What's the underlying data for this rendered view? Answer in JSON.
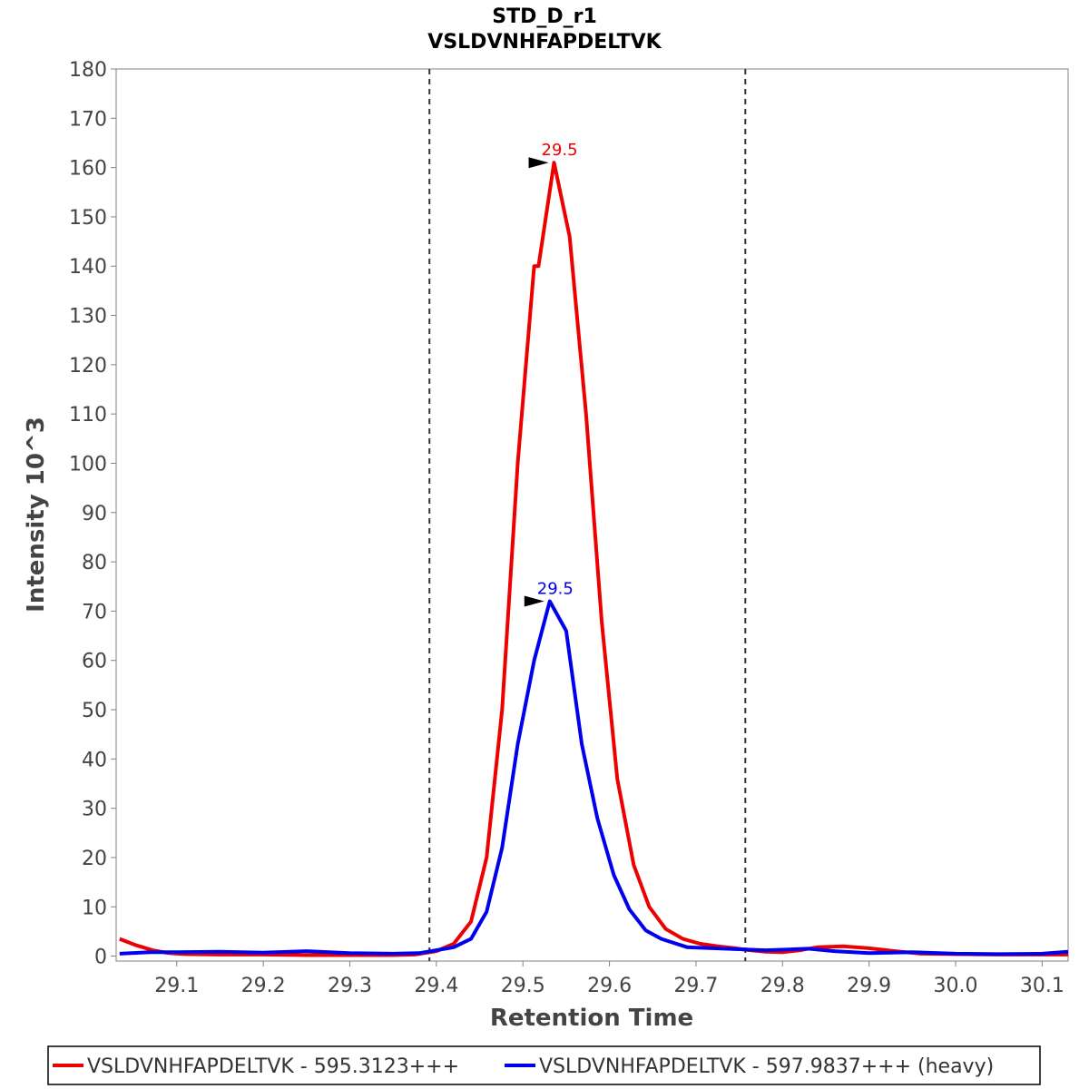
{
  "chart_data": {
    "type": "line",
    "title": "STD_D_r1",
    "subtitle": "VSLDVNHFAPDELTVK",
    "xlabel": "Retention Time",
    "ylabel": "Intensity 10^3",
    "xlim": [
      29.03,
      30.13
    ],
    "ylim": [
      -1,
      180
    ],
    "xticks": [
      "29.1",
      "29.2",
      "29.3",
      "29.4",
      "29.5",
      "29.6",
      "29.7",
      "29.8",
      "29.9",
      "30.0",
      "30.1"
    ],
    "yticks": [
      "0",
      "10",
      "20",
      "30",
      "40",
      "50",
      "60",
      "70",
      "80",
      "90",
      "100",
      "110",
      "120",
      "130",
      "140",
      "150",
      "160",
      "170",
      "180"
    ],
    "grid": false,
    "legend_position": "bottom",
    "integration_boundaries": [
      29.392,
      29.757
    ],
    "series": [
      {
        "name": "VSLDVNHFAPDELTVK - 595.3123+++",
        "color": "#ee0000",
        "x": [
          29.034,
          29.053,
          29.072,
          29.091,
          29.11,
          29.15,
          29.2,
          29.25,
          29.3,
          29.35,
          29.375,
          29.4,
          29.42,
          29.44,
          29.458,
          29.476,
          29.494,
          29.513,
          29.518,
          29.536,
          29.554,
          29.573,
          29.591,
          29.609,
          29.628,
          29.646,
          29.665,
          29.685,
          29.705,
          29.725,
          29.745,
          29.757,
          29.78,
          29.8,
          29.82,
          29.84,
          29.87,
          29.9,
          29.93,
          29.96,
          30.0,
          30.05,
          30.1,
          30.13
        ],
        "y": [
          3.5,
          2.2,
          1.2,
          0.6,
          0.4,
          0.3,
          0.3,
          0.2,
          0.2,
          0.2,
          0.3,
          1.0,
          2.5,
          7.0,
          20.0,
          50.0,
          100.0,
          140.0,
          140.0,
          161.0,
          146.0,
          110.0,
          68.0,
          36.0,
          18.5,
          10.0,
          5.5,
          3.5,
          2.5,
          2.0,
          1.6,
          1.3,
          0.9,
          0.8,
          1.2,
          1.8,
          2.0,
          1.6,
          1.0,
          0.5,
          0.4,
          0.3,
          0.3,
          0.3
        ]
      },
      {
        "name": "VSLDVNHFAPDELTVK - 597.9837+++ (heavy)",
        "color": "#0000ee",
        "x": [
          29.034,
          29.07,
          29.1,
          29.15,
          29.2,
          29.25,
          29.3,
          29.35,
          29.38,
          29.4,
          29.42,
          29.44,
          29.458,
          29.476,
          29.494,
          29.513,
          29.531,
          29.55,
          29.568,
          29.586,
          29.605,
          29.623,
          29.642,
          29.66,
          29.69,
          29.72,
          29.75,
          29.78,
          29.8,
          29.83,
          29.86,
          29.9,
          29.95,
          30.0,
          30.05,
          30.1,
          30.13
        ],
        "y": [
          0.5,
          0.8,
          0.8,
          0.9,
          0.7,
          1.0,
          0.6,
          0.5,
          0.6,
          1.2,
          1.8,
          3.5,
          9.0,
          22.0,
          43.0,
          60.0,
          72.0,
          66.0,
          43.0,
          28.0,
          16.5,
          9.5,
          5.2,
          3.5,
          1.8,
          1.6,
          1.4,
          1.2,
          1.3,
          1.5,
          1.0,
          0.6,
          0.8,
          0.5,
          0.4,
          0.5,
          0.9
        ]
      }
    ],
    "annotations": [
      {
        "text": "29.5",
        "x": 29.536,
        "y": 161.0,
        "color": "#ee0000"
      },
      {
        "text": "29.5",
        "x": 29.531,
        "y": 72.0,
        "color": "#0000ee"
      }
    ]
  }
}
